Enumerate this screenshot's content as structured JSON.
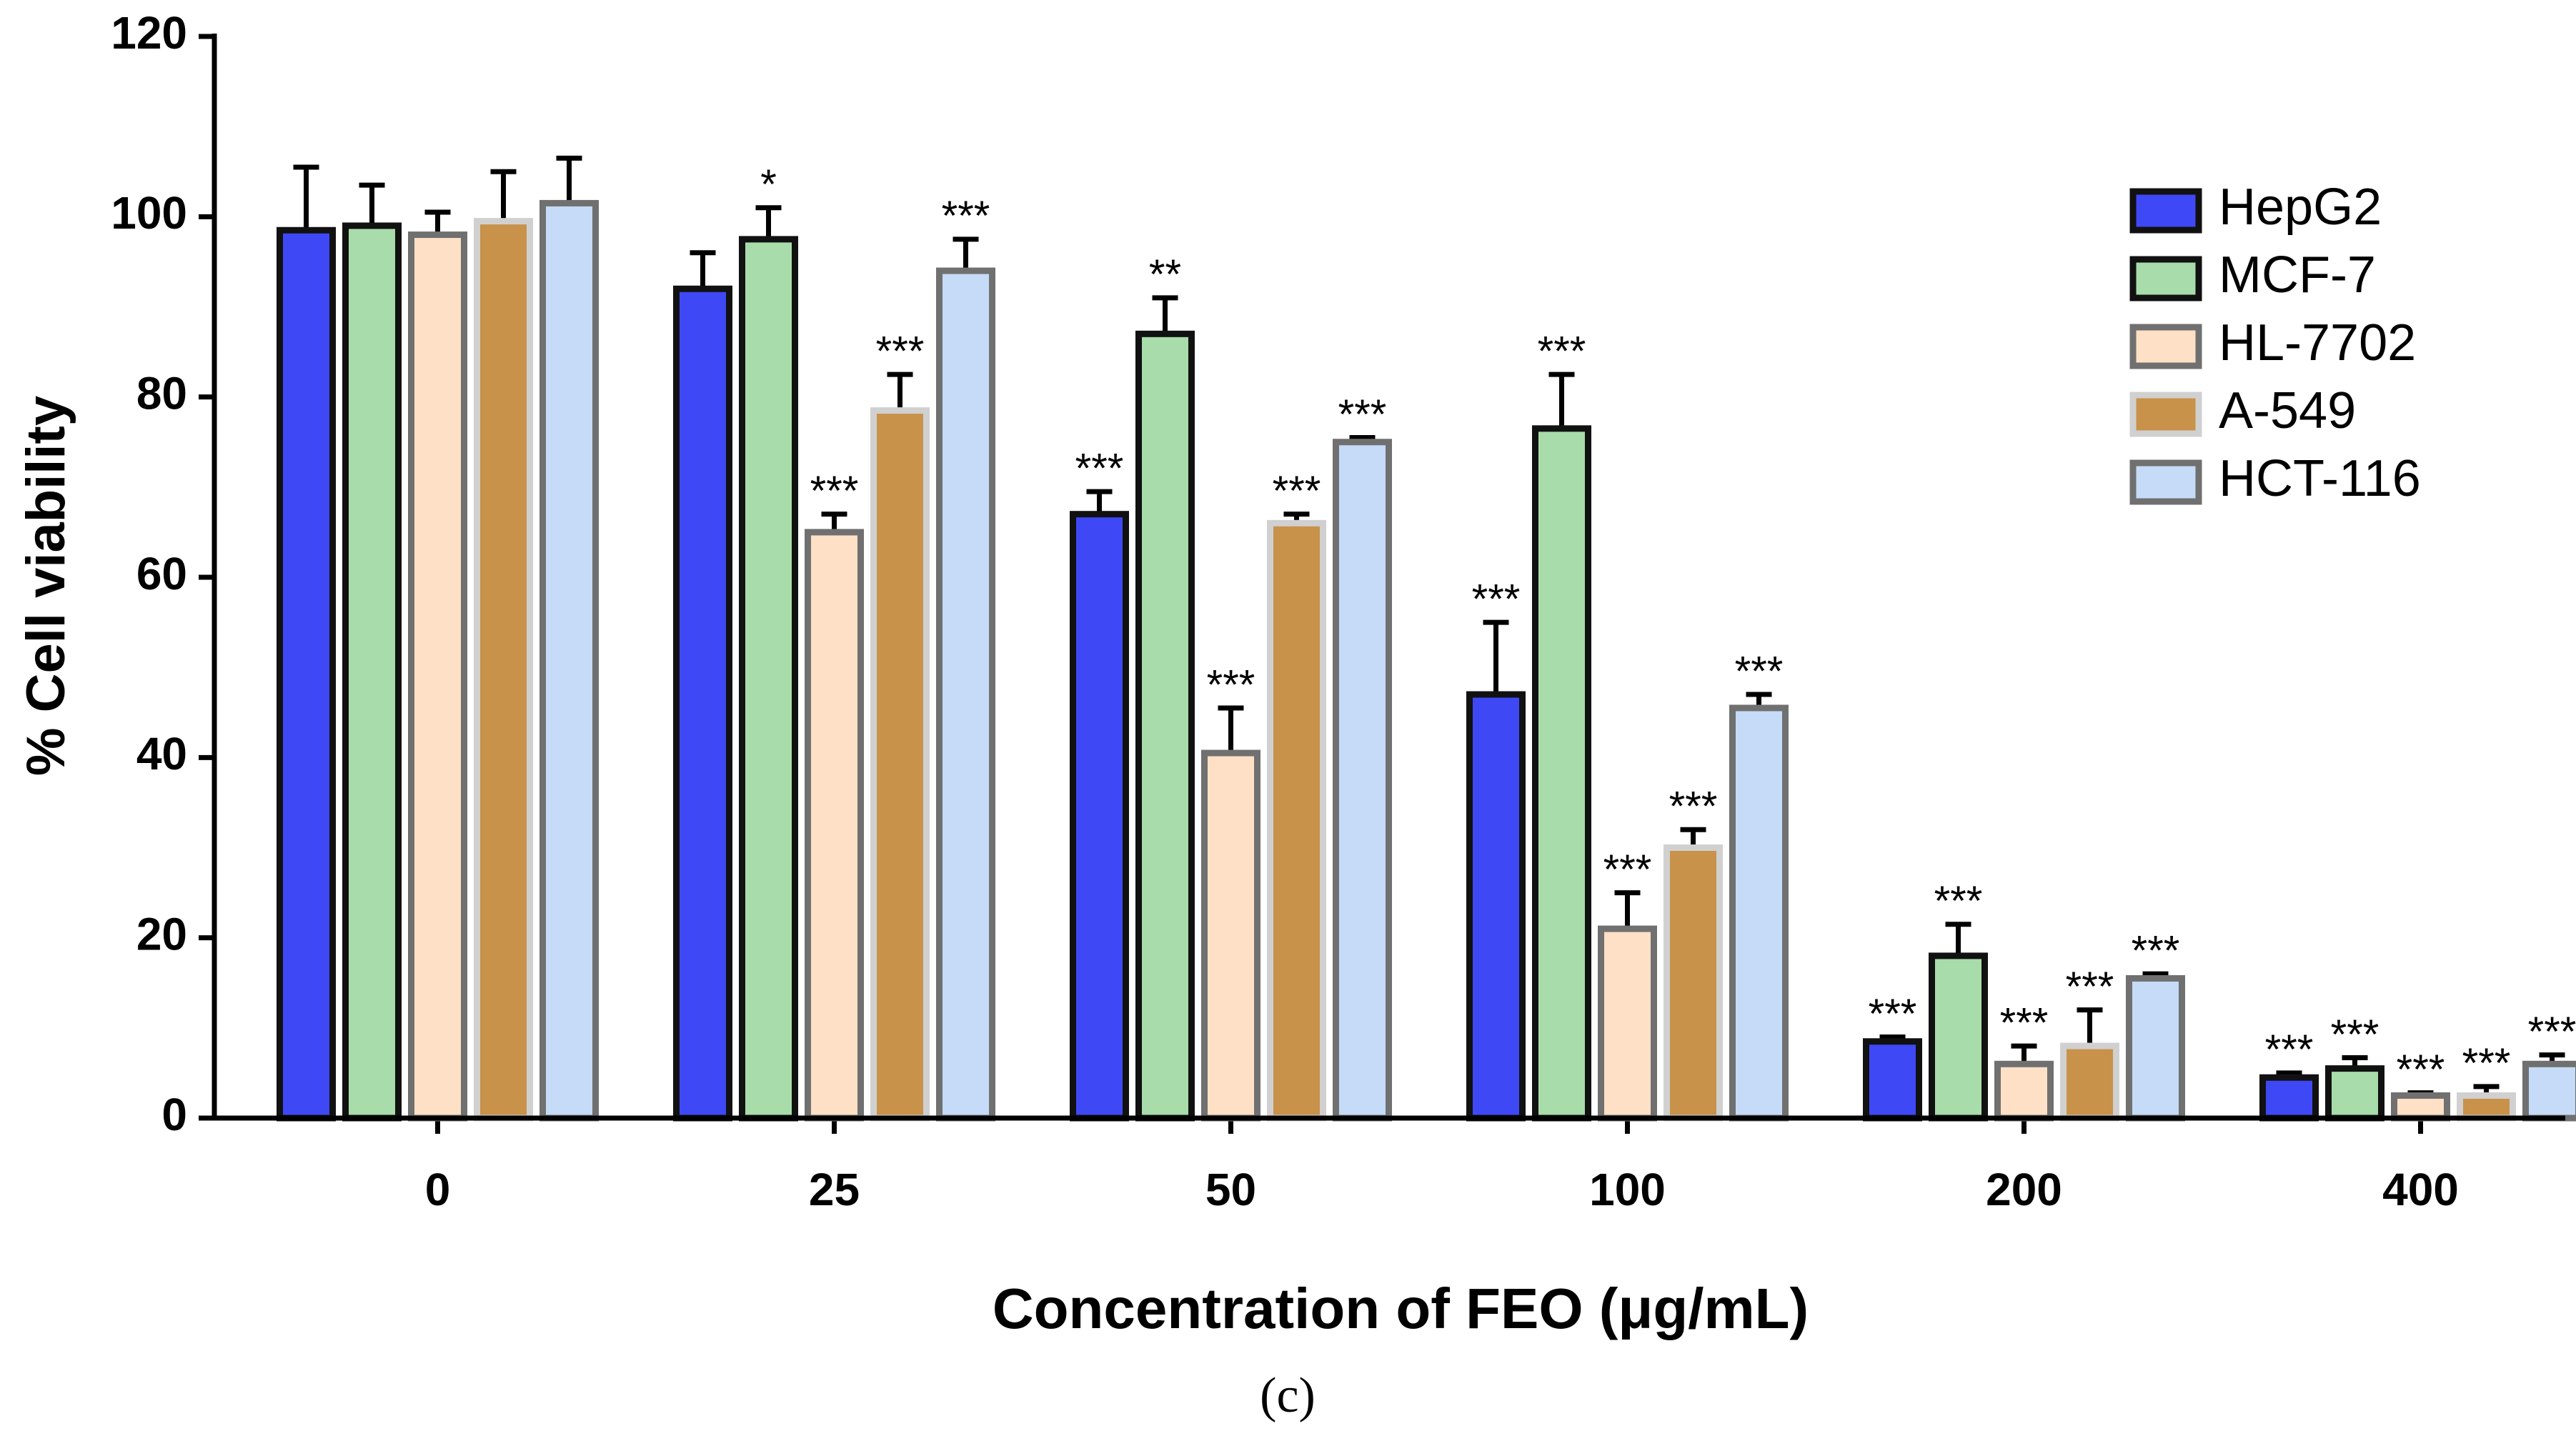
{
  "chart_data": {
    "type": "bar",
    "caption": "(c)",
    "x_label": "Concentration of FEO (μg/mL)",
    "y_label": "% Cell viability",
    "categories": [
      "0",
      "25",
      "50",
      "100",
      "200",
      "400"
    ],
    "ylim": [
      0,
      120
    ],
    "yticks": [
      0,
      20,
      40,
      60,
      80,
      100,
      120
    ],
    "legend": "upper right",
    "series": [
      {
        "name": "HepG2",
        "color": "#3f48f5",
        "edgecolor": "#111111",
        "values": [
          98.5,
          92,
          67,
          47,
          8.5,
          4.5
        ],
        "errors": [
          7,
          4,
          2.5,
          8,
          0.5,
          0.5
        ],
        "annotations": [
          null,
          null,
          "***",
          "***",
          "***",
          "***"
        ]
      },
      {
        "name": "MCF-7",
        "color": "#a8dcaa",
        "edgecolor": "#111111",
        "values": [
          99,
          97.5,
          87,
          76.5,
          18,
          5.5
        ],
        "errors": [
          4.5,
          3.5,
          4,
          6,
          3.5,
          1.2
        ],
        "annotations": [
          null,
          "*",
          "**",
          "***",
          "***",
          "***"
        ]
      },
      {
        "name": "HL-7702",
        "color": "#fde0c5",
        "edgecolor": "#707070",
        "values": [
          98,
          65,
          40.5,
          21,
          6,
          2.5
        ],
        "errors": [
          2.5,
          2,
          5,
          4,
          2,
          0.3
        ],
        "annotations": [
          null,
          "***",
          "***",
          "***",
          "***",
          "***"
        ]
      },
      {
        "name": "A-549",
        "color": "#c8924a",
        "edgecolor": "#d0d0d0",
        "values": [
          99.5,
          78.5,
          66,
          30,
          8,
          2.5
        ],
        "errors": [
          5.5,
          4,
          1,
          2,
          4,
          1
        ],
        "annotations": [
          null,
          "***",
          "***",
          "***",
          "***",
          "***"
        ]
      },
      {
        "name": "HCT-116",
        "color": "#c5dbf7",
        "edgecolor": "#707070",
        "values": [
          101.5,
          94,
          75,
          45.5,
          15.5,
          6
        ],
        "errors": [
          5,
          3.5,
          0.5,
          1.5,
          0.5,
          1
        ],
        "annotations": [
          null,
          "***",
          "***",
          "***",
          "***",
          "***"
        ]
      }
    ]
  }
}
